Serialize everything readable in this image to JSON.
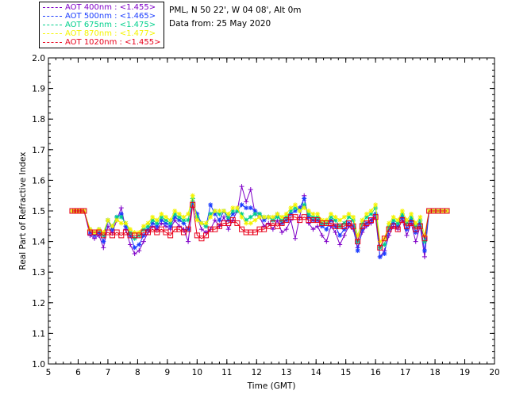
{
  "header": {
    "location": "PML, N 50 22', W 04 08', Alt 0m",
    "date": "Data from: 25 May 2020"
  },
  "legend": [
    {
      "label": "AOT  400nm : <1.455>",
      "color": "#7f00c8"
    },
    {
      "label": "AOT  500nm : <1.465>",
      "color": "#1a3cff"
    },
    {
      "label": "AOT  675nm : <1.475>",
      "color": "#00d08c"
    },
    {
      "label": "AOT  870nm : <1.477>",
      "color": "#f4f400"
    },
    {
      "label": "AOT 1020nm : <1.455>",
      "color": "#e8001a"
    }
  ],
  "chart_data": {
    "type": "line",
    "xlabel": "Time (GMT)",
    "ylabel": "Real Part of Refractive Index",
    "xlim": [
      5,
      20
    ],
    "ylim": [
      1.0,
      2.0
    ],
    "xticks": [
      "5",
      "6",
      "7",
      "8",
      "9",
      "10",
      "11",
      "12",
      "13",
      "14",
      "15",
      "16",
      "17",
      "18",
      "19",
      "20"
    ],
    "yticks": [
      "1.0",
      "1.1",
      "1.2",
      "1.3",
      "1.4",
      "1.5",
      "1.6",
      "1.7",
      "1.8",
      "1.9",
      "2.0"
    ],
    "x": [
      5.8,
      5.9,
      6.0,
      6.1,
      6.2,
      6.4,
      6.55,
      6.7,
      6.85,
      7.0,
      7.15,
      7.3,
      7.45,
      7.6,
      7.75,
      7.9,
      8.05,
      8.2,
      8.35,
      8.5,
      8.65,
      8.8,
      8.95,
      9.1,
      9.25,
      9.4,
      9.55,
      9.7,
      9.85,
      10.0,
      10.15,
      10.3,
      10.45,
      10.6,
      10.75,
      10.9,
      11.05,
      11.2,
      11.35,
      11.5,
      11.65,
      11.8,
      11.95,
      12.1,
      12.25,
      12.4,
      12.55,
      12.7,
      12.85,
      13.0,
      13.15,
      13.3,
      13.45,
      13.6,
      13.75,
      13.9,
      14.05,
      14.2,
      14.35,
      14.5,
      14.65,
      14.8,
      14.95,
      15.1,
      15.25,
      15.4,
      15.55,
      15.7,
      15.85,
      16.0,
      16.15,
      16.3,
      16.45,
      16.6,
      16.75,
      16.9,
      17.05,
      17.2,
      17.35,
      17.5,
      17.65,
      17.8,
      17.95,
      18.1,
      18.25,
      18.4
    ],
    "series": [
      {
        "name": "AOT  400nm",
        "color": "#7f00c8",
        "marker": "plus",
        "values": [
          1.5,
          1.5,
          1.5,
          1.5,
          1.5,
          1.42,
          1.41,
          1.42,
          1.38,
          1.45,
          1.43,
          1.47,
          1.51,
          1.44,
          1.39,
          1.36,
          1.37,
          1.4,
          1.43,
          1.45,
          1.44,
          1.46,
          1.45,
          1.44,
          1.47,
          1.45,
          1.44,
          1.4,
          1.52,
          1.48,
          1.44,
          1.43,
          1.44,
          1.47,
          1.45,
          1.48,
          1.44,
          1.47,
          1.5,
          1.58,
          1.53,
          1.57,
          1.49,
          1.48,
          1.45,
          1.46,
          1.44,
          1.47,
          1.43,
          1.44,
          1.47,
          1.41,
          1.48,
          1.55,
          1.46,
          1.44,
          1.45,
          1.42,
          1.4,
          1.45,
          1.43,
          1.39,
          1.42,
          1.45,
          1.44,
          1.38,
          1.43,
          1.45,
          1.46,
          1.48,
          1.35,
          1.37,
          1.42,
          1.45,
          1.44,
          1.47,
          1.42,
          1.46,
          1.4,
          1.45,
          1.35,
          1.5,
          1.5,
          1.5,
          1.5,
          1.5
        ]
      },
      {
        "name": "AOT  500nm",
        "color": "#1a3cff",
        "marker": "star",
        "values": [
          1.5,
          1.5,
          1.5,
          1.5,
          1.5,
          1.43,
          1.42,
          1.43,
          1.4,
          1.47,
          1.44,
          1.48,
          1.49,
          1.45,
          1.42,
          1.38,
          1.39,
          1.42,
          1.44,
          1.46,
          1.45,
          1.47,
          1.46,
          1.45,
          1.48,
          1.47,
          1.46,
          1.44,
          1.53,
          1.49,
          1.46,
          1.45,
          1.52,
          1.49,
          1.47,
          1.5,
          1.47,
          1.49,
          1.5,
          1.52,
          1.51,
          1.51,
          1.5,
          1.49,
          1.47,
          1.48,
          1.47,
          1.49,
          1.46,
          1.47,
          1.49,
          1.5,
          1.51,
          1.54,
          1.48,
          1.47,
          1.47,
          1.45,
          1.44,
          1.47,
          1.45,
          1.42,
          1.44,
          1.46,
          1.45,
          1.37,
          1.44,
          1.46,
          1.47,
          1.49,
          1.35,
          1.36,
          1.44,
          1.46,
          1.45,
          1.48,
          1.44,
          1.47,
          1.43,
          1.46,
          1.37,
          1.5,
          1.5,
          1.5,
          1.5,
          1.5
        ]
      },
      {
        "name": "AOT  675nm",
        "color": "#00d08c",
        "marker": "star",
        "values": [
          1.5,
          1.5,
          1.5,
          1.5,
          1.5,
          1.44,
          1.43,
          1.44,
          1.42,
          1.47,
          1.45,
          1.48,
          1.48,
          1.46,
          1.43,
          1.41,
          1.42,
          1.44,
          1.45,
          1.47,
          1.46,
          1.48,
          1.47,
          1.46,
          1.49,
          1.48,
          1.47,
          1.47,
          1.54,
          1.48,
          1.46,
          1.45,
          1.49,
          1.5,
          1.49,
          1.5,
          1.48,
          1.5,
          1.5,
          1.49,
          1.47,
          1.48,
          1.49,
          1.49,
          1.48,
          1.48,
          1.47,
          1.48,
          1.47,
          1.48,
          1.5,
          1.51,
          1.5,
          1.52,
          1.49,
          1.48,
          1.48,
          1.46,
          1.46,
          1.48,
          1.47,
          1.45,
          1.46,
          1.48,
          1.47,
          1.4,
          1.46,
          1.48,
          1.49,
          1.51,
          1.38,
          1.39,
          1.45,
          1.47,
          1.46,
          1.49,
          1.46,
          1.48,
          1.45,
          1.47,
          1.4,
          1.5,
          1.5,
          1.5,
          1.5,
          1.5
        ]
      },
      {
        "name": "AOT  870nm",
        "color": "#f4f400",
        "marker": "star",
        "values": [
          1.5,
          1.5,
          1.5,
          1.5,
          1.5,
          1.44,
          1.43,
          1.44,
          1.43,
          1.47,
          1.45,
          1.47,
          1.46,
          1.46,
          1.44,
          1.43,
          1.43,
          1.45,
          1.46,
          1.48,
          1.47,
          1.49,
          1.48,
          1.47,
          1.5,
          1.49,
          1.48,
          1.49,
          1.55,
          1.47,
          1.46,
          1.46,
          1.48,
          1.5,
          1.5,
          1.5,
          1.49,
          1.51,
          1.51,
          1.48,
          1.46,
          1.46,
          1.47,
          1.48,
          1.48,
          1.48,
          1.48,
          1.49,
          1.48,
          1.49,
          1.51,
          1.52,
          1.5,
          1.51,
          1.5,
          1.49,
          1.49,
          1.47,
          1.47,
          1.49,
          1.48,
          1.47,
          1.48,
          1.49,
          1.48,
          1.42,
          1.47,
          1.49,
          1.5,
          1.52,
          1.4,
          1.41,
          1.46,
          1.48,
          1.47,
          1.5,
          1.47,
          1.49,
          1.46,
          1.48,
          1.42,
          1.5,
          1.5,
          1.5,
          1.5,
          1.5
        ]
      },
      {
        "name": "AOT 1020nm",
        "color": "#e8001a",
        "marker": "square",
        "values": [
          1.5,
          1.5,
          1.5,
          1.5,
          1.5,
          1.43,
          1.43,
          1.43,
          1.42,
          1.43,
          1.42,
          1.43,
          1.42,
          1.43,
          1.42,
          1.42,
          1.42,
          1.43,
          1.43,
          1.44,
          1.43,
          1.44,
          1.43,
          1.42,
          1.44,
          1.44,
          1.43,
          1.44,
          1.52,
          1.42,
          1.41,
          1.42,
          1.44,
          1.44,
          1.45,
          1.46,
          1.46,
          1.47,
          1.46,
          1.44,
          1.43,
          1.43,
          1.43,
          1.44,
          1.44,
          1.45,
          1.46,
          1.45,
          1.46,
          1.47,
          1.48,
          1.48,
          1.47,
          1.48,
          1.47,
          1.47,
          1.47,
          1.46,
          1.46,
          1.46,
          1.45,
          1.45,
          1.45,
          1.46,
          1.45,
          1.4,
          1.45,
          1.46,
          1.47,
          1.48,
          1.38,
          1.41,
          1.44,
          1.45,
          1.44,
          1.47,
          1.45,
          1.46,
          1.44,
          1.45,
          1.41,
          1.5,
          1.5,
          1.5,
          1.5,
          1.5
        ]
      }
    ]
  }
}
